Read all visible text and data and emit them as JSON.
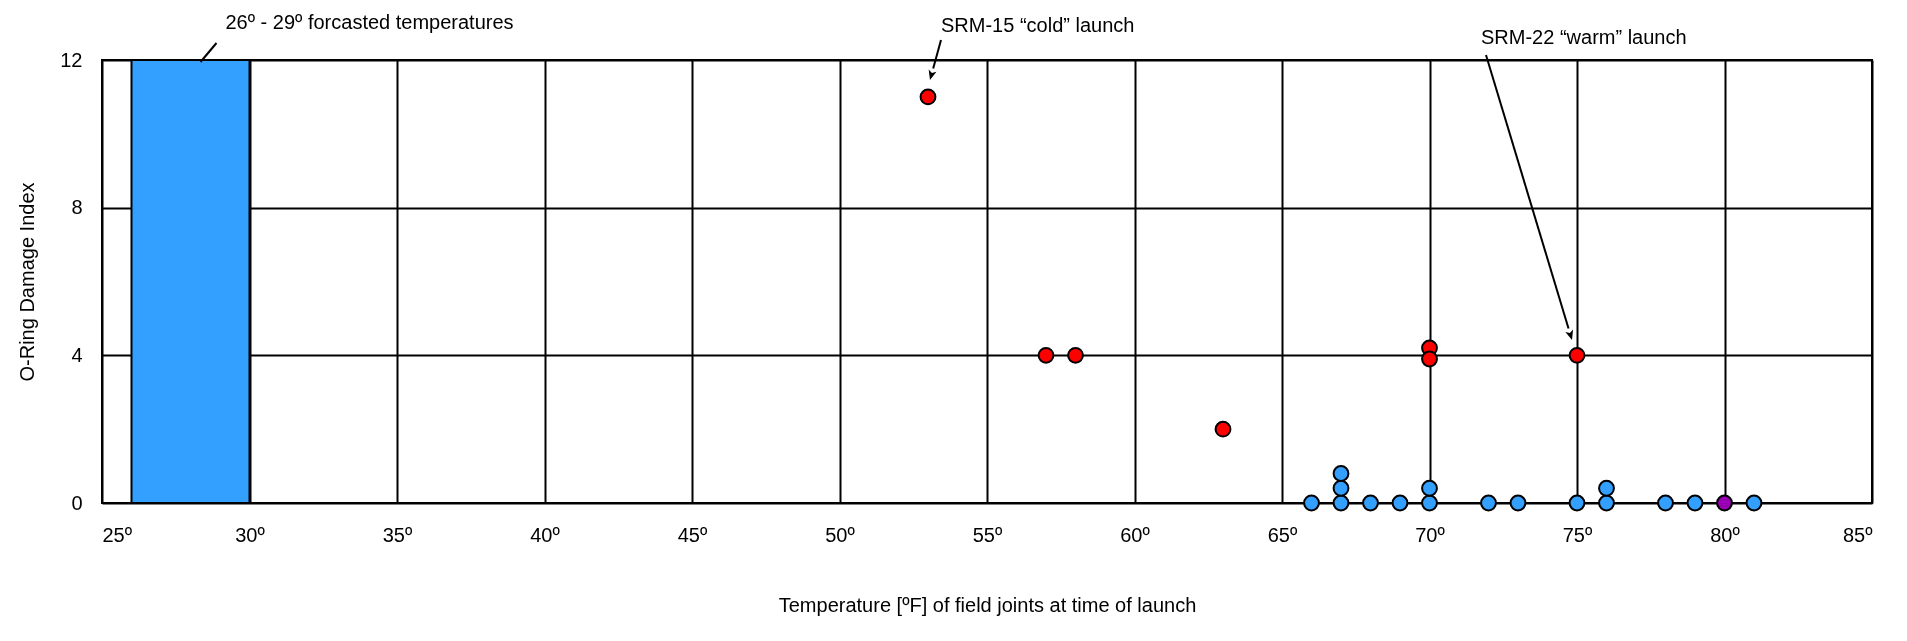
{
  "chart_data": {
    "type": "scatter",
    "xlabel": "Temperature [ºF] of field joints at time of launch",
    "ylabel": "O-Ring Damage Index",
    "xlim": [
      25,
      85
    ],
    "xticks": [
      {
        "value": 25,
        "label": "25º"
      },
      {
        "value": 30,
        "label": "30º"
      },
      {
        "value": 35,
        "label": "35º"
      },
      {
        "value": 40,
        "label": "40º"
      },
      {
        "value": 45,
        "label": "45º"
      },
      {
        "value": 50,
        "label": "50º"
      },
      {
        "value": 55,
        "label": "55º"
      },
      {
        "value": 60,
        "label": "60º"
      },
      {
        "value": 65,
        "label": "65º"
      },
      {
        "value": 70,
        "label": "70º"
      },
      {
        "value": 75,
        "label": "75º"
      },
      {
        "value": 80,
        "label": "80º"
      },
      {
        "value": 85,
        "label": "85º"
      }
    ],
    "ylim": [
      0,
      12
    ],
    "yticks": [
      0,
      4,
      8,
      12
    ],
    "grid": true,
    "marker": "circle",
    "series": [
      {
        "color": "#ff0000",
        "x": [
          53,
          57,
          58,
          63,
          70,
          70,
          75
        ],
        "values": [
          11,
          4,
          4,
          2,
          4.2,
          3.9,
          4
        ]
      },
      {
        "color": "#33a0ff",
        "x": [
          66,
          67,
          67,
          67,
          68,
          69,
          70,
          70,
          72,
          73,
          75,
          76,
          76,
          78,
          79,
          81
        ],
        "values": [
          0,
          0,
          0.4,
          0.8,
          0,
          0,
          0,
          0.4,
          0,
          0,
          0,
          0,
          0.4,
          0,
          0,
          0
        ]
      },
      {
        "color": "#9900b3",
        "x": [
          80
        ],
        "values": [
          0
        ]
      }
    ],
    "bands": [
      {
        "axis": "x",
        "from": 26,
        "to": 30,
        "label": "26º - 29º forcasted temperatures",
        "color": "#33a0ff"
      }
    ],
    "annotations": [
      "SRM-15 “cold” launch",
      "SRM-22 “warm” launch"
    ]
  }
}
